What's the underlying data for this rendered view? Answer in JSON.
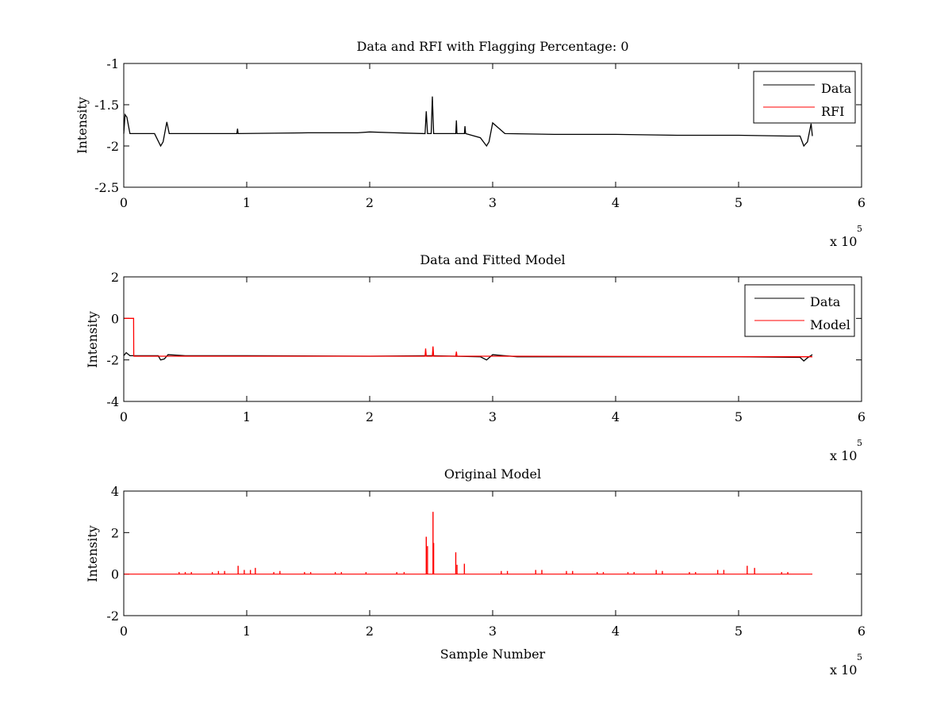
{
  "chart_data": [
    {
      "type": "line",
      "title": "Data and RFI with Flagging Percentage: 0",
      "xlabel": "",
      "ylabel": "Intensity",
      "xlim": [
        0,
        6
      ],
      "ylim": [
        -2.5,
        -1
      ],
      "x_multiplier": "x 10^5",
      "x_multiplier_base": "x 10",
      "x_multiplier_exp": "5",
      "xticks": [
        0,
        1,
        2,
        3,
        4,
        5,
        6
      ],
      "yticks": [
        -2.5,
        -2,
        -1.5,
        -1
      ],
      "grid": false,
      "legend_position": "top-right",
      "series": [
        {
          "name": "Data",
          "color": "#000000",
          "x": [
            0,
            0.01,
            0.025,
            0.05,
            0.1,
            0.2,
            0.25,
            0.3,
            0.32,
            0.35,
            0.37,
            0.5,
            0.92,
            0.925,
            0.93,
            1.5,
            1.9,
            2.0,
            2.2,
            2.45,
            2.46,
            2.47,
            2.5,
            2.51,
            2.52,
            2.53,
            2.6,
            2.7,
            2.705,
            2.71,
            2.77,
            2.775,
            2.78,
            2.9,
            2.95,
            2.97,
            3.0,
            3.1,
            3.5,
            4.0,
            4.5,
            5.0,
            5.4,
            5.5,
            5.53,
            5.56,
            5.59,
            5.6
          ],
          "y": [
            -1.85,
            -1.62,
            -1.65,
            -1.85,
            -1.85,
            -1.85,
            -1.85,
            -2.0,
            -1.95,
            -1.71,
            -1.85,
            -1.85,
            -1.85,
            -1.79,
            -1.85,
            -1.84,
            -1.84,
            -1.83,
            -1.84,
            -1.85,
            -1.58,
            -1.85,
            -1.85,
            -1.4,
            -1.85,
            -1.85,
            -1.85,
            -1.85,
            -1.69,
            -1.85,
            -1.85,
            -1.76,
            -1.85,
            -1.9,
            -2.0,
            -1.95,
            -1.72,
            -1.85,
            -1.86,
            -1.86,
            -1.87,
            -1.87,
            -1.88,
            -1.88,
            -2.0,
            -1.95,
            -1.73,
            -1.88
          ]
        },
        {
          "name": "RFI",
          "color": "#ff0000",
          "x": [],
          "y": []
        }
      ]
    },
    {
      "type": "line",
      "title": "Data and Fitted Model",
      "xlabel": "",
      "ylabel": "Intensity",
      "xlim": [
        0,
        6
      ],
      "ylim": [
        -4,
        2
      ],
      "x_multiplier": "x 10^5",
      "x_multiplier_base": "x 10",
      "x_multiplier_exp": "5",
      "xticks": [
        0,
        1,
        2,
        3,
        4,
        5,
        6
      ],
      "yticks": [
        -4,
        -2,
        0,
        2
      ],
      "grid": false,
      "legend_position": "top-right",
      "series": [
        {
          "name": "Data",
          "color": "#000000",
          "x": [
            0,
            0.02,
            0.05,
            0.28,
            0.3,
            0.33,
            0.36,
            0.5,
            1.0,
            2.0,
            2.5,
            2.9,
            2.95,
            3.0,
            3.2,
            4.0,
            5.0,
            5.5,
            5.53,
            5.56,
            5.6
          ],
          "y": [
            -1.8,
            -1.65,
            -1.8,
            -1.8,
            -2.0,
            -1.95,
            -1.75,
            -1.8,
            -1.8,
            -1.82,
            -1.8,
            -1.85,
            -2.0,
            -1.75,
            -1.85,
            -1.85,
            -1.85,
            -1.88,
            -2.05,
            -1.9,
            -1.75
          ]
        },
        {
          "name": "Model",
          "color": "#ff0000",
          "x": [
            0,
            0.08,
            0.081,
            2.45,
            2.455,
            2.46,
            2.51,
            2.515,
            2.52,
            2.7,
            2.705,
            2.71,
            3.0,
            5.6
          ],
          "y": [
            0,
            0,
            -1.82,
            -1.82,
            -1.45,
            -1.82,
            -1.82,
            -1.35,
            -1.82,
            -1.82,
            -1.6,
            -1.82,
            -1.82,
            -1.85
          ]
        }
      ]
    },
    {
      "type": "line",
      "title": "Original Model",
      "xlabel": "Sample Number",
      "ylabel": "Intensity",
      "xlim": [
        0,
        6
      ],
      "ylim": [
        -2,
        4
      ],
      "x_multiplier": "x 10^5",
      "x_multiplier_base": "x 10",
      "x_multiplier_exp": "5",
      "xticks": [
        0,
        1,
        2,
        3,
        4,
        5,
        6
      ],
      "yticks": [
        -2,
        0,
        2,
        4
      ],
      "grid": false,
      "series": [
        {
          "name": "",
          "color": "#ff0000",
          "spikes": [
            {
              "x": 0.45,
              "y": 0.1
            },
            {
              "x": 0.5,
              "y": 0.1
            },
            {
              "x": 0.55,
              "y": 0.1
            },
            {
              "x": 0.72,
              "y": 0.1
            },
            {
              "x": 0.77,
              "y": 0.15
            },
            {
              "x": 0.82,
              "y": 0.15
            },
            {
              "x": 0.93,
              "y": 0.4
            },
            {
              "x": 0.98,
              "y": 0.2
            },
            {
              "x": 1.03,
              "y": 0.2
            },
            {
              "x": 1.07,
              "y": 0.3
            },
            {
              "x": 1.22,
              "y": 0.1
            },
            {
              "x": 1.27,
              "y": 0.15
            },
            {
              "x": 1.47,
              "y": 0.1
            },
            {
              "x": 1.52,
              "y": 0.1
            },
            {
              "x": 1.72,
              "y": 0.1
            },
            {
              "x": 1.77,
              "y": 0.1
            },
            {
              "x": 1.97,
              "y": 0.1
            },
            {
              "x": 2.22,
              "y": 0.1
            },
            {
              "x": 2.28,
              "y": 0.1
            },
            {
              "x": 2.46,
              "y": 1.8
            },
            {
              "x": 2.47,
              "y": 1.35
            },
            {
              "x": 2.515,
              "y": 3.0
            },
            {
              "x": 2.52,
              "y": 1.5
            },
            {
              "x": 2.7,
              "y": 1.05
            },
            {
              "x": 2.71,
              "y": 0.45
            },
            {
              "x": 2.77,
              "y": 0.5
            },
            {
              "x": 3.07,
              "y": 0.15
            },
            {
              "x": 3.12,
              "y": 0.15
            },
            {
              "x": 3.35,
              "y": 0.2
            },
            {
              "x": 3.4,
              "y": 0.2
            },
            {
              "x": 3.6,
              "y": 0.15
            },
            {
              "x": 3.65,
              "y": 0.15
            },
            {
              "x": 3.85,
              "y": 0.1
            },
            {
              "x": 3.9,
              "y": 0.1
            },
            {
              "x": 4.1,
              "y": 0.1
            },
            {
              "x": 4.15,
              "y": 0.1
            },
            {
              "x": 4.33,
              "y": 0.2
            },
            {
              "x": 4.38,
              "y": 0.15
            },
            {
              "x": 4.6,
              "y": 0.1
            },
            {
              "x": 4.65,
              "y": 0.1
            },
            {
              "x": 4.83,
              "y": 0.2
            },
            {
              "x": 4.88,
              "y": 0.2
            },
            {
              "x": 5.07,
              "y": 0.4
            },
            {
              "x": 5.13,
              "y": 0.3
            },
            {
              "x": 5.35,
              "y": 0.1
            },
            {
              "x": 5.4,
              "y": 0.1
            }
          ],
          "baseline": 0,
          "x_end": 5.6
        }
      ]
    }
  ]
}
